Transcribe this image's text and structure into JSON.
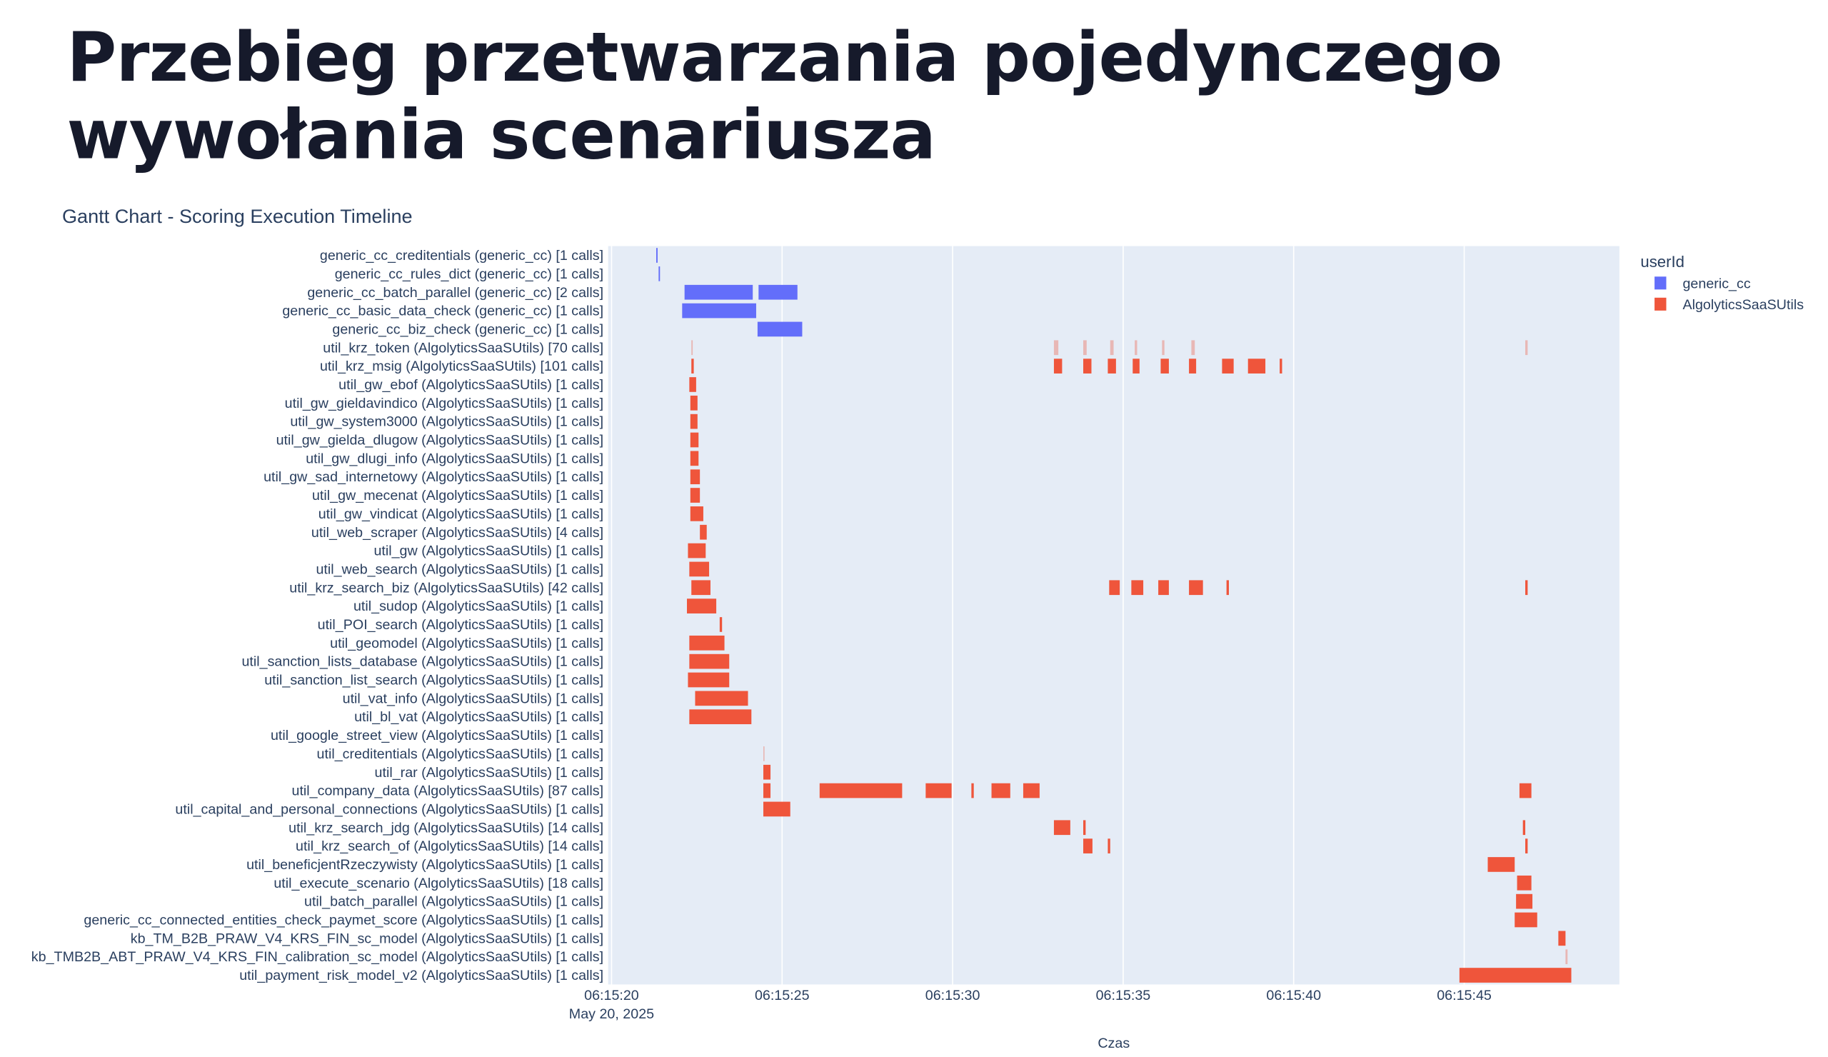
{
  "page": {
    "title_line1": "Przebieg przetwarzania pojedynczego",
    "title_line2": "wywołania scenariusza"
  },
  "chart_data": {
    "type": "gantt",
    "title": "Gantt Chart - Scoring Execution Timeline",
    "xlabel": "Czas",
    "ylabel": "",
    "date_label": "May 20, 2025",
    "xlim": [
      "06:15:19.9",
      "06:15:49.55"
    ],
    "x_ticks": [
      "06:15:20",
      "06:15:25",
      "06:15:30",
      "06:15:35",
      "06:15:40",
      "06:15:45"
    ],
    "grid": true,
    "plot_background": "#e5ecf6",
    "legend": {
      "title": "userId",
      "placement": "right",
      "entries": [
        {
          "name": "generic_cc",
          "color": "#636efa"
        },
        {
          "name": "AlgolyticsSaaSUtils",
          "color": "#ef553b"
        }
      ]
    },
    "tasks": [
      {
        "label": "generic_cc_creditentials (generic_cc) [1 calls]",
        "group": "generic_cc",
        "segments": [
          [
            "06:15:21.31",
            "06:15:21.35"
          ]
        ]
      },
      {
        "label": "generic_cc_rules_dict (generic_cc) [1 calls]",
        "group": "generic_cc",
        "segments": [
          [
            "06:15:21.38",
            "06:15:21.42"
          ]
        ]
      },
      {
        "label": "generic_cc_batch_parallel (generic_cc) [2 calls]",
        "group": "generic_cc",
        "segments": [
          [
            "06:15:22.14",
            "06:15:24.14"
          ],
          [
            "06:15:24.31",
            "06:15:25.45"
          ]
        ]
      },
      {
        "label": "generic_cc_basic_data_check (generic_cc) [1 calls]",
        "group": "generic_cc",
        "segments": [
          [
            "06:15:22.07",
            "06:15:24.24"
          ]
        ]
      },
      {
        "label": "generic_cc_biz_check (generic_cc) [1 calls]",
        "group": "generic_cc",
        "segments": [
          [
            "06:15:24.28",
            "06:15:25.59"
          ]
        ]
      },
      {
        "label": "util_krz_token (AlgolyticsSaaSUtils) [70 calls]",
        "group": "AlgolyticsSaaSUtils",
        "faint": true,
        "segments": [
          [
            "06:15:22.34",
            "06:15:22.38"
          ],
          [
            "06:15:32.97",
            "06:15:33.10"
          ],
          [
            "06:15:33.83",
            "06:15:33.93"
          ],
          [
            "06:15:34.62",
            "06:15:34.72"
          ],
          [
            "06:15:35.34",
            "06:15:35.41"
          ],
          [
            "06:15:36.14",
            "06:15:36.21"
          ],
          [
            "06:15:37.00",
            "06:15:37.10"
          ],
          [
            "06:15:46.79",
            "06:15:46.86"
          ]
        ]
      },
      {
        "label": "util_krz_msig (AlgolyticsSaaSUtils) [101 calls]",
        "group": "AlgolyticsSaaSUtils",
        "segments": [
          [
            "06:15:22.34",
            "06:15:22.41"
          ],
          [
            "06:15:32.97",
            "06:15:33.21"
          ],
          [
            "06:15:33.83",
            "06:15:34.07"
          ],
          [
            "06:15:34.55",
            "06:15:34.79"
          ],
          [
            "06:15:35.28",
            "06:15:35.48"
          ],
          [
            "06:15:36.10",
            "06:15:36.34"
          ],
          [
            "06:15:36.93",
            "06:15:37.14"
          ],
          [
            "06:15:37.90",
            "06:15:38.24"
          ],
          [
            "06:15:38.66",
            "06:15:39.17"
          ],
          [
            "06:15:39.59",
            "06:15:39.66"
          ]
        ]
      },
      {
        "label": "util_gw_ebof (AlgolyticsSaaSUtils) [1 calls]",
        "group": "AlgolyticsSaaSUtils",
        "segments": [
          [
            "06:15:22.28",
            "06:15:22.48"
          ]
        ]
      },
      {
        "label": "util_gw_gieldavindico (AlgolyticsSaaSUtils) [1 calls]",
        "group": "AlgolyticsSaaSUtils",
        "segments": [
          [
            "06:15:22.31",
            "06:15:22.52"
          ]
        ]
      },
      {
        "label": "util_gw_system3000 (AlgolyticsSaaSUtils) [1 calls]",
        "group": "AlgolyticsSaaSUtils",
        "segments": [
          [
            "06:15:22.31",
            "06:15:22.52"
          ]
        ]
      },
      {
        "label": "util_gw_gielda_dlugow (AlgolyticsSaaSUtils) [1 calls]",
        "group": "AlgolyticsSaaSUtils",
        "segments": [
          [
            "06:15:22.31",
            "06:15:22.55"
          ]
        ]
      },
      {
        "label": "util_gw_dlugi_info (AlgolyticsSaaSUtils) [1 calls]",
        "group": "AlgolyticsSaaSUtils",
        "segments": [
          [
            "06:15:22.31",
            "06:15:22.55"
          ]
        ]
      },
      {
        "label": "util_gw_sad_internetowy (AlgolyticsSaaSUtils) [1 calls]",
        "group": "AlgolyticsSaaSUtils",
        "segments": [
          [
            "06:15:22.31",
            "06:15:22.59"
          ]
        ]
      },
      {
        "label": "util_gw_mecenat (AlgolyticsSaaSUtils) [1 calls]",
        "group": "AlgolyticsSaaSUtils",
        "segments": [
          [
            "06:15:22.31",
            "06:15:22.59"
          ]
        ]
      },
      {
        "label": "util_gw_vindicat (AlgolyticsSaaSUtils) [1 calls]",
        "group": "AlgolyticsSaaSUtils",
        "segments": [
          [
            "06:15:22.31",
            "06:15:22.69"
          ]
        ]
      },
      {
        "label": "util_web_scraper (AlgolyticsSaaSUtils) [4 calls]",
        "group": "AlgolyticsSaaSUtils",
        "segments": [
          [
            "06:15:22.59",
            "06:15:22.79"
          ]
        ]
      },
      {
        "label": "util_gw (AlgolyticsSaaSUtils) [1 calls]",
        "group": "AlgolyticsSaaSUtils",
        "segments": [
          [
            "06:15:22.24",
            "06:15:22.76"
          ]
        ]
      },
      {
        "label": "util_web_search (AlgolyticsSaaSUtils) [1 calls]",
        "group": "AlgolyticsSaaSUtils",
        "segments": [
          [
            "06:15:22.28",
            "06:15:22.86"
          ]
        ]
      },
      {
        "label": "util_krz_search_biz (AlgolyticsSaaSUtils) [42 calls]",
        "group": "AlgolyticsSaaSUtils",
        "segments": [
          [
            "06:15:22.34",
            "06:15:22.90"
          ],
          [
            "06:15:34.59",
            "06:15:34.90"
          ],
          [
            "06:15:35.24",
            "06:15:35.59"
          ],
          [
            "06:15:36.03",
            "06:15:36.34"
          ],
          [
            "06:15:36.93",
            "06:15:37.34"
          ],
          [
            "06:15:38.03",
            "06:15:38.10"
          ],
          [
            "06:15:46.79",
            "06:15:46.86"
          ]
        ]
      },
      {
        "label": "util_sudop (AlgolyticsSaaSUtils) [1 calls]",
        "group": "AlgolyticsSaaSUtils",
        "segments": [
          [
            "06:15:22.21",
            "06:15:23.07"
          ]
        ]
      },
      {
        "label": "util_POI_search (AlgolyticsSaaSUtils) [1 calls]",
        "group": "AlgolyticsSaaSUtils",
        "segments": [
          [
            "06:15:23.17",
            "06:15:23.24"
          ]
        ]
      },
      {
        "label": "util_geomodel (AlgolyticsSaaSUtils) [1 calls]",
        "group": "AlgolyticsSaaSUtils",
        "segments": [
          [
            "06:15:22.28",
            "06:15:23.31"
          ]
        ]
      },
      {
        "label": "util_sanction_lists_database (AlgolyticsSaaSUtils) [1 calls]",
        "group": "AlgolyticsSaaSUtils",
        "segments": [
          [
            "06:15:22.28",
            "06:15:23.45"
          ]
        ]
      },
      {
        "label": "util_sanction_list_search (AlgolyticsSaaSUtils) [1 calls]",
        "group": "AlgolyticsSaaSUtils",
        "segments": [
          [
            "06:15:22.24",
            "06:15:23.45"
          ]
        ]
      },
      {
        "label": "util_vat_info (AlgolyticsSaaSUtils) [1 calls]",
        "group": "AlgolyticsSaaSUtils",
        "segments": [
          [
            "06:15:22.45",
            "06:15:24.00"
          ]
        ]
      },
      {
        "label": "util_bl_vat (AlgolyticsSaaSUtils) [1 calls]",
        "group": "AlgolyticsSaaSUtils",
        "segments": [
          [
            "06:15:22.28",
            "06:15:24.10"
          ]
        ]
      },
      {
        "label": "util_google_street_view (AlgolyticsSaaSUtils) [1 calls]",
        "group": "AlgolyticsSaaSUtils",
        "segments": []
      },
      {
        "label": "util_creditentials (AlgolyticsSaaSUtils) [1 calls]",
        "group": "AlgolyticsSaaSUtils",
        "faint": true,
        "segments": [
          [
            "06:15:24.45",
            "06:15:24.48"
          ]
        ]
      },
      {
        "label": "util_rar (AlgolyticsSaaSUtils) [1 calls]",
        "group": "AlgolyticsSaaSUtils",
        "segments": [
          [
            "06:15:24.45",
            "06:15:24.66"
          ]
        ]
      },
      {
        "label": "util_company_data (AlgolyticsSaaSUtils) [87 calls]",
        "group": "AlgolyticsSaaSUtils",
        "segments": [
          [
            "06:15:24.45",
            "06:15:24.66"
          ],
          [
            "06:15:26.10",
            "06:15:28.52"
          ],
          [
            "06:15:29.21",
            "06:15:29.97"
          ],
          [
            "06:15:30.55",
            "06:15:30.62"
          ],
          [
            "06:15:31.14",
            "06:15:31.69"
          ],
          [
            "06:15:32.07",
            "06:15:32.55"
          ],
          [
            "06:15:46.62",
            "06:15:46.97"
          ]
        ]
      },
      {
        "label": "util_capital_and_personal_connections (AlgolyticsSaaSUtils) [1 calls]",
        "group": "AlgolyticsSaaSUtils",
        "segments": [
          [
            "06:15:24.45",
            "06:15:25.24"
          ]
        ]
      },
      {
        "label": "util_krz_search_jdg (AlgolyticsSaaSUtils) [14 calls]",
        "group": "AlgolyticsSaaSUtils",
        "segments": [
          [
            "06:15:32.97",
            "06:15:33.45"
          ],
          [
            "06:15:33.83",
            "06:15:33.90"
          ],
          [
            "06:15:46.72",
            "06:15:46.79"
          ]
        ]
      },
      {
        "label": "util_krz_search_of (AlgolyticsSaaSUtils) [14 calls]",
        "group": "AlgolyticsSaaSUtils",
        "segments": [
          [
            "06:15:33.83",
            "06:15:34.10"
          ],
          [
            "06:15:34.55",
            "06:15:34.62"
          ],
          [
            "06:15:46.79",
            "06:15:46.86"
          ]
        ]
      },
      {
        "label": "util_beneficjentRzeczywisty (AlgolyticsSaaSUtils) [1 calls]",
        "group": "AlgolyticsSaaSUtils",
        "segments": [
          [
            "06:15:45.69",
            "06:15:46.48"
          ]
        ]
      },
      {
        "label": "util_execute_scenario (AlgolyticsSaaSUtils) [18 calls]",
        "group": "AlgolyticsSaaSUtils",
        "segments": [
          [
            "06:15:46.55",
            "06:15:46.97"
          ]
        ]
      },
      {
        "label": "util_batch_parallel (AlgolyticsSaaSUtils) [1 calls]",
        "group": "AlgolyticsSaaSUtils",
        "segments": [
          [
            "06:15:46.52",
            "06:15:47.00"
          ]
        ]
      },
      {
        "label": "generic_cc_connected_entities_check_paymet_score (AlgolyticsSaaSUtils) [1 calls]",
        "group": "AlgolyticsSaaSUtils",
        "segments": [
          [
            "06:15:46.48",
            "06:15:47.14"
          ]
        ]
      },
      {
        "label": "kb_TM_B2B_PRAW_V4_KRS_FIN_sc_model (AlgolyticsSaaSUtils) [1 calls]",
        "group": "AlgolyticsSaaSUtils",
        "segments": [
          [
            "06:15:47.76",
            "06:15:47.97"
          ]
        ]
      },
      {
        "label": "kb_TMB2B_ABT_PRAW_V4_KRS_FIN_calibration_sc_model (AlgolyticsSaaSUtils) [1 calls]",
        "group": "AlgolyticsSaaSUtils",
        "faint": true,
        "segments": [
          [
            "06:15:47.97",
            "06:15:48.03"
          ]
        ]
      },
      {
        "label": "util_payment_risk_model_v2 (AlgolyticsSaaSUtils) [1 calls]",
        "group": "AlgolyticsSaaSUtils",
        "segments": [
          [
            "06:15:44.86",
            "06:15:48.14"
          ]
        ]
      }
    ]
  }
}
